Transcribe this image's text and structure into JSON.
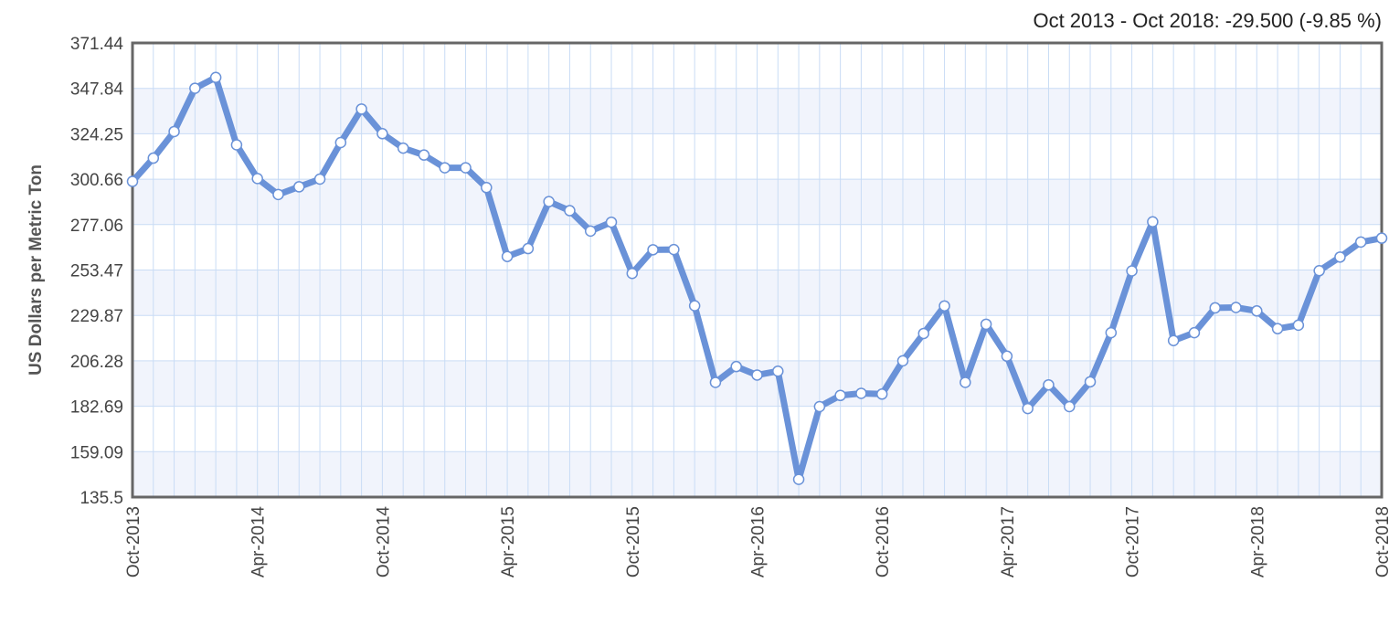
{
  "chart_data": {
    "type": "line",
    "title": "",
    "summary": "Oct 2013 - Oct 2018: -29.500 (-9.85 %)",
    "ylabel": "US Dollars per Metric Ton",
    "xlabel": "",
    "ylim": [
      135.5,
      371.44
    ],
    "y_ticks": [
      "135.5",
      "159.09",
      "182.69",
      "206.28",
      "229.87",
      "253.47",
      "277.06",
      "300.66",
      "324.25",
      "347.84",
      "371.44"
    ],
    "x_tick_labels": [
      "Oct-2013",
      "Apr-2014",
      "Oct-2014",
      "Apr-2015",
      "Oct-2015",
      "Apr-2016",
      "Oct-2016",
      "Apr-2017",
      "Oct-2017",
      "Apr-2018",
      "Oct-2018"
    ],
    "x": [
      "2013-10",
      "2013-11",
      "2013-12",
      "2014-01",
      "2014-02",
      "2014-03",
      "2014-04",
      "2014-05",
      "2014-06",
      "2014-07",
      "2014-08",
      "2014-09",
      "2014-10",
      "2014-11",
      "2014-12",
      "2015-01",
      "2015-02",
      "2015-03",
      "2015-04",
      "2015-05",
      "2015-06",
      "2015-07",
      "2015-08",
      "2015-09",
      "2015-10",
      "2015-11",
      "2015-12",
      "2016-01",
      "2016-02",
      "2016-03",
      "2016-04",
      "2016-05",
      "2016-06",
      "2016-07",
      "2016-08",
      "2016-09",
      "2016-10",
      "2016-11",
      "2016-12",
      "2017-01",
      "2017-02",
      "2017-03",
      "2017-04",
      "2017-05",
      "2017-06",
      "2017-07",
      "2017-08",
      "2017-09",
      "2017-10",
      "2017-11",
      "2017-12",
      "2018-01",
      "2018-02",
      "2018-03",
      "2018-04",
      "2018-05",
      "2018-06",
      "2018-07",
      "2018-08",
      "2018-09",
      "2018-10"
    ],
    "series": [
      {
        "values": [
          299.5,
          311.6,
          325.4,
          347.9,
          353.5,
          318.5,
          301.0,
          292.7,
          296.7,
          300.7,
          319.7,
          337.1,
          324.3,
          316.8,
          313.2,
          306.6,
          306.6,
          296.3,
          260.5,
          264.6,
          289.0,
          284.3,
          273.7,
          278.3,
          251.7,
          264.0,
          264.1,
          234.9,
          195.1,
          203.3,
          198.9,
          200.9,
          144.7,
          182.5,
          188.3,
          189.4,
          189.0,
          206.3,
          220.5,
          234.8,
          195.1,
          225.3,
          208.7,
          181.5,
          193.8,
          182.5,
          195.4,
          220.9,
          253.0,
          278.5,
          216.8,
          220.9,
          233.8,
          234.0,
          232.2,
          223.0,
          224.8,
          253.1,
          260.2,
          268.0,
          270.0
        ]
      }
    ],
    "grid": true,
    "colors": {
      "line": "#6a92d8",
      "band": "#f1f4fc",
      "plot_bg": "#ffffff",
      "grid_v": "#c9dcf5",
      "grid_h": "#c9dcf5",
      "border": "#666666",
      "marker_fill": "#ffffff",
      "marker_stroke": "#6a92d8"
    }
  }
}
